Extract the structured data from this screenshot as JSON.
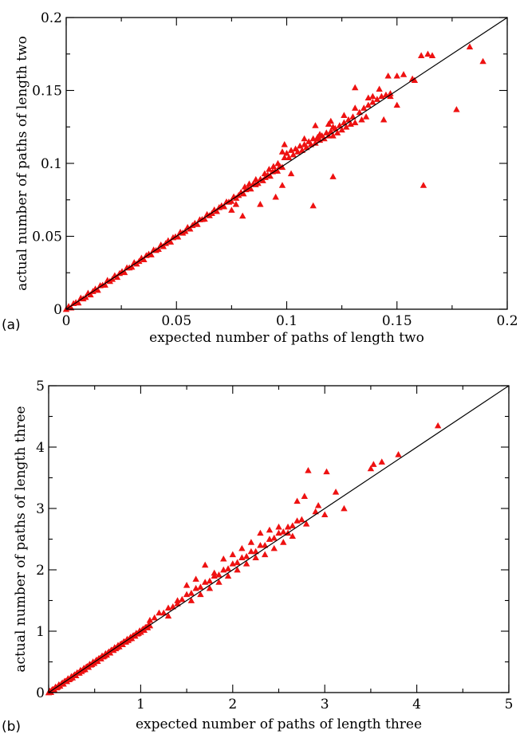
{
  "chart_data": [
    {
      "type": "scatter",
      "panel_label": "(a)",
      "xlabel": "expected number of paths of length two",
      "ylabel": "actual number of paths of length two",
      "xlim": [
        0,
        0.2
      ],
      "ylim": [
        0,
        0.2
      ],
      "xticks": [
        0,
        0.05,
        0.1,
        0.15,
        0.2
      ],
      "yticks": [
        0,
        0.05,
        0.1,
        0.15,
        0.2
      ],
      "xtick_labels": [
        "0",
        "0.05",
        "0.1",
        "0.15",
        "0.2"
      ],
      "ytick_labels": [
        "0",
        "0.05",
        "0.1",
        "0.15",
        "0.2"
      ],
      "grid": false,
      "marker_color": "#ee1111",
      "marker": "triangle",
      "reference_line": "y = x",
      "points": [
        [
          0.098,
          0.108
        ],
        [
          0.099,
          0.104
        ],
        [
          0.1,
          0.107
        ],
        [
          0.101,
          0.104
        ],
        [
          0.102,
          0.109
        ],
        [
          0.103,
          0.106
        ],
        [
          0.104,
          0.11
        ],
        [
          0.105,
          0.108
        ],
        [
          0.106,
          0.112
        ],
        [
          0.107,
          0.109
        ],
        [
          0.108,
          0.113
        ],
        [
          0.109,
          0.111
        ],
        [
          0.11,
          0.115
        ],
        [
          0.111,
          0.113
        ],
        [
          0.112,
          0.117
        ],
        [
          0.113,
          0.114
        ],
        [
          0.114,
          0.118
        ],
        [
          0.115,
          0.116
        ],
        [
          0.116,
          0.119
        ],
        [
          0.117,
          0.117
        ],
        [
          0.118,
          0.121
        ],
        [
          0.119,
          0.119
        ],
        [
          0.12,
          0.122
        ],
        [
          0.121,
          0.119
        ],
        [
          0.122,
          0.124
        ],
        [
          0.123,
          0.121
        ],
        [
          0.124,
          0.126
        ],
        [
          0.125,
          0.123
        ],
        [
          0.126,
          0.128
        ],
        [
          0.127,
          0.125
        ],
        [
          0.128,
          0.13
        ],
        [
          0.129,
          0.127
        ],
        [
          0.13,
          0.132
        ],
        [
          0.131,
          0.128
        ],
        [
          0.133,
          0.135
        ],
        [
          0.135,
          0.138
        ],
        [
          0.137,
          0.14
        ],
        [
          0.139,
          0.142
        ],
        [
          0.141,
          0.144
        ],
        [
          0.143,
          0.146
        ],
        [
          0.145,
          0.147
        ],
        [
          0.147,
          0.148
        ],
        [
          0.099,
          0.113
        ],
        [
          0.113,
          0.126
        ],
        [
          0.12,
          0.129
        ],
        [
          0.126,
          0.133
        ],
        [
          0.131,
          0.138
        ],
        [
          0.137,
          0.145
        ],
        [
          0.139,
          0.146
        ],
        [
          0.142,
          0.151
        ],
        [
          0.146,
          0.16
        ],
        [
          0.15,
          0.16
        ],
        [
          0.153,
          0.161
        ],
        [
          0.157,
          0.158
        ],
        [
          0.158,
          0.157
        ],
        [
          0.161,
          0.174
        ],
        [
          0.164,
          0.175
        ],
        [
          0.166,
          0.174
        ],
        [
          0.183,
          0.18
        ],
        [
          0.189,
          0.17
        ],
        [
          0.131,
          0.152
        ],
        [
          0.15,
          0.14
        ],
        [
          0.144,
          0.13
        ],
        [
          0.134,
          0.13
        ],
        [
          0.136,
          0.132
        ],
        [
          0.147,
          0.146
        ],
        [
          0.177,
          0.137
        ],
        [
          0.162,
          0.085
        ],
        [
          0.112,
          0.071
        ],
        [
          0.121,
          0.091
        ],
        [
          0.102,
          0.093
        ],
        [
          0.098,
          0.085
        ],
        [
          0.095,
          0.077
        ],
        [
          0.088,
          0.072
        ],
        [
          0.08,
          0.064
        ],
        [
          0.077,
          0.072
        ],
        [
          0.075,
          0.068
        ],
        [
          0.094,
          0.098
        ],
        [
          0.096,
          0.1
        ],
        [
          0.09,
          0.093
        ],
        [
          0.086,
          0.089
        ],
        [
          0.092,
          0.096
        ],
        [
          0.081,
          0.084
        ],
        [
          0.083,
          0.086
        ],
        [
          0.108,
          0.117
        ],
        [
          0.115,
          0.12
        ],
        [
          0.119,
          0.127
        ],
        [
          0.114,
          0.117
        ],
        [
          0.121,
          0.125
        ]
      ]
    },
    {
      "type": "scatter",
      "panel_label": "(b)",
      "xlabel": "expected number of paths of length three",
      "ylabel": "actual number of paths of length three",
      "xlim": [
        0,
        5
      ],
      "ylim": [
        0,
        5
      ],
      "xticks": [
        1,
        2,
        3,
        4,
        5
      ],
      "yticks": [
        0,
        1,
        2,
        3,
        4,
        5
      ],
      "xtick_labels": [
        "1",
        "2",
        "3",
        "4",
        "5"
      ],
      "ytick_labels": [
        "0",
        "1",
        "2",
        "3",
        "4",
        "5"
      ],
      "grid": false,
      "marker_color": "#ee1111",
      "marker": "triangle",
      "reference_line": "y = x",
      "points": [
        [
          1.1,
          1.18
        ],
        [
          1.15,
          1.22
        ],
        [
          1.2,
          1.3
        ],
        [
          1.25,
          1.3
        ],
        [
          1.3,
          1.38
        ],
        [
          1.35,
          1.4
        ],
        [
          1.4,
          1.5
        ],
        [
          1.45,
          1.52
        ],
        [
          1.5,
          1.6
        ],
        [
          1.55,
          1.62
        ],
        [
          1.6,
          1.7
        ],
        [
          1.65,
          1.72
        ],
        [
          1.7,
          1.8
        ],
        [
          1.75,
          1.82
        ],
        [
          1.8,
          1.9
        ],
        [
          1.85,
          1.92
        ],
        [
          1.9,
          2.0
        ],
        [
          1.95,
          2.02
        ],
        [
          2.0,
          2.1
        ],
        [
          2.05,
          2.12
        ],
        [
          2.1,
          2.2
        ],
        [
          2.15,
          2.22
        ],
        [
          2.2,
          2.3
        ],
        [
          2.25,
          2.3
        ],
        [
          2.3,
          2.4
        ],
        [
          2.35,
          2.4
        ],
        [
          2.4,
          2.5
        ],
        [
          2.45,
          2.52
        ],
        [
          2.5,
          2.6
        ],
        [
          2.55,
          2.62
        ],
        [
          2.6,
          2.7
        ],
        [
          2.65,
          2.72
        ],
        [
          2.7,
          2.8
        ],
        [
          2.75,
          2.82
        ],
        [
          1.5,
          1.75
        ],
        [
          1.6,
          1.85
        ],
        [
          1.7,
          2.08
        ],
        [
          1.8,
          1.95
        ],
        [
          1.9,
          2.18
        ],
        [
          2.0,
          2.25
        ],
        [
          2.1,
          2.35
        ],
        [
          2.2,
          2.45
        ],
        [
          2.3,
          2.6
        ],
        [
          2.4,
          2.65
        ],
        [
          2.5,
          2.7
        ],
        [
          2.6,
          2.6
        ],
        [
          2.7,
          3.12
        ],
        [
          2.78,
          3.2
        ],
        [
          2.82,
          3.62
        ],
        [
          2.93,
          3.05
        ],
        [
          3.02,
          3.6
        ],
        [
          3.12,
          3.27
        ],
        [
          3.21,
          3.0
        ],
        [
          3.5,
          3.65
        ],
        [
          3.53,
          3.72
        ],
        [
          3.62,
          3.76
        ],
        [
          3.8,
          3.88
        ],
        [
          4.23,
          4.35
        ],
        [
          2.8,
          2.75
        ],
        [
          2.9,
          2.95
        ],
        [
          3.0,
          2.9
        ],
        [
          1.4,
          1.45
        ],
        [
          1.3,
          1.25
        ],
        [
          1.55,
          1.5
        ],
        [
          1.65,
          1.6
        ],
        [
          1.75,
          1.7
        ],
        [
          1.85,
          1.8
        ],
        [
          1.95,
          1.9
        ],
        [
          2.05,
          2.0
        ],
        [
          2.15,
          2.1
        ],
        [
          2.25,
          2.2
        ],
        [
          2.35,
          2.25
        ],
        [
          2.45,
          2.35
        ],
        [
          2.55,
          2.45
        ],
        [
          2.65,
          2.55
        ]
      ]
    }
  ]
}
